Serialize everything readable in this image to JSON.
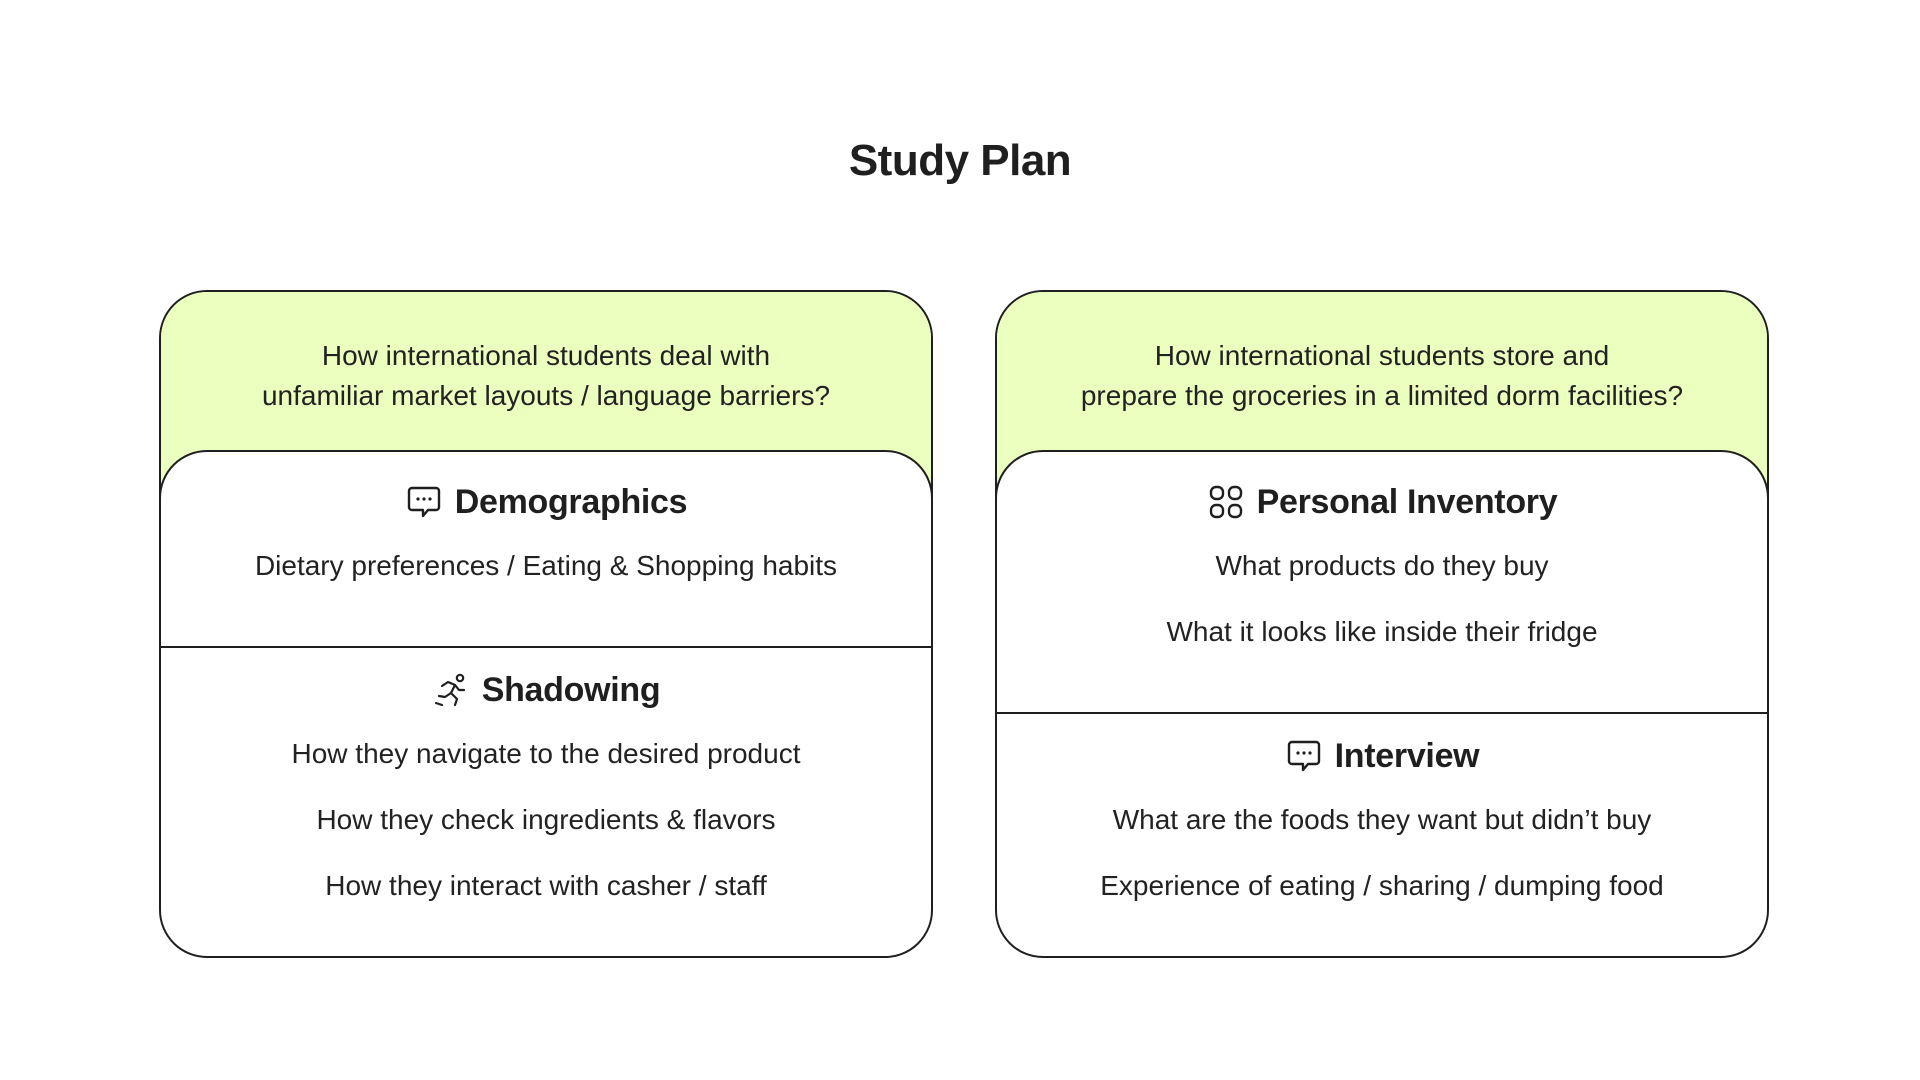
{
  "title": "Study Plan",
  "colors": {
    "question_bg": "#ebffbf",
    "border": "#1f1f1f",
    "text": "#222222"
  },
  "cards": [
    {
      "question": "How international students deal with\nunfamiliar market layouts / language barriers?",
      "sections": [
        {
          "icon": "chat-bubble-icon",
          "title": "Demographics",
          "items": [
            "Dietary preferences / Eating & Shopping habits"
          ]
        },
        {
          "icon": "running-person-icon",
          "title": "Shadowing",
          "items": [
            "How they navigate to the desired product",
            "How they check ingredients & flavors",
            "How they interact with casher / staff"
          ]
        }
      ]
    },
    {
      "question": "How international students store and\nprepare the groceries in a limited dorm facilities?",
      "sections": [
        {
          "icon": "grid-icon",
          "title": "Personal Inventory",
          "items": [
            "What products do they buy",
            "What it looks like inside their fridge"
          ]
        },
        {
          "icon": "chat-bubble-icon",
          "title": "Interview",
          "items": [
            "What are the foods they want but didn’t buy",
            "Experience of eating / sharing / dumping food"
          ]
        }
      ]
    }
  ]
}
